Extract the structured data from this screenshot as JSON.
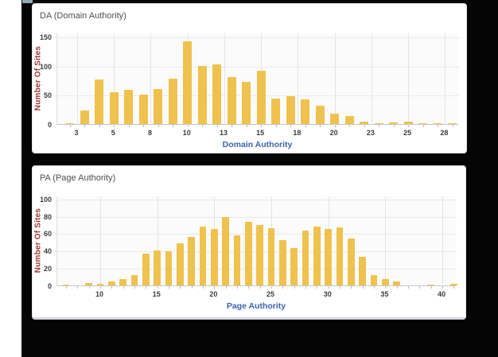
{
  "page": {
    "backdrop_color": "#050505",
    "chip_color": "#93a7b7",
    "card_background": "#ffffff"
  },
  "chart_data": [
    {
      "id": "da",
      "type": "bar",
      "title": "DA (Domain Authority)",
      "xlabel": "Domain Authority",
      "ylabel": "Number Of Sites",
      "x": [
        2,
        3,
        4,
        5,
        6,
        7,
        8,
        9,
        10,
        11,
        12,
        13,
        14,
        15,
        16,
        17,
        18,
        19,
        20,
        21,
        22,
        23,
        24,
        25,
        26,
        27,
        28
      ],
      "values": [
        1,
        23,
        76,
        55,
        59,
        51,
        60,
        78,
        142,
        100,
        102,
        80,
        72,
        92,
        44,
        48,
        42,
        32,
        18,
        13,
        4,
        1,
        3,
        4,
        1,
        1,
        2
      ],
      "xticks": [
        {
          "pos": 2.5,
          "label": "3"
        },
        {
          "pos": 5,
          "label": "5"
        },
        {
          "pos": 7.5,
          "label": "8"
        },
        {
          "pos": 10,
          "label": "10"
        },
        {
          "pos": 12.5,
          "label": "13"
        },
        {
          "pos": 15,
          "label": "15"
        },
        {
          "pos": 17.5,
          "label": "18"
        },
        {
          "pos": 20,
          "label": "20"
        },
        {
          "pos": 22.5,
          "label": "23"
        },
        {
          "pos": 25,
          "label": "25"
        },
        {
          "pos": 27.5,
          "label": "28"
        }
      ],
      "yticks": [
        0,
        50,
        100,
        150
      ],
      "ylim": [
        0,
        157
      ],
      "xlim": [
        1.15,
        28.45
      ],
      "grid": true,
      "bar_color": "#EFC24E",
      "xlabel_color": "#3A63B0",
      "ylabel_color": "#9B3732"
    },
    {
      "id": "pa",
      "type": "bar",
      "title": "PA (Page Authority)",
      "xlabel": "Page Authority",
      "ylabel": "Number Of Sites",
      "x": [
        7,
        8,
        9,
        10,
        11,
        12,
        13,
        14,
        15,
        16,
        17,
        18,
        19,
        20,
        21,
        22,
        23,
        24,
        25,
        26,
        27,
        28,
        29,
        30,
        31,
        32,
        33,
        34,
        35,
        36,
        37,
        38,
        39,
        40,
        41
      ],
      "values": [
        1,
        0,
        3,
        2,
        5,
        7,
        12,
        37,
        40,
        39,
        49,
        56,
        68,
        65,
        79,
        58,
        73,
        70,
        66,
        52,
        43,
        63,
        68,
        65,
        67,
        54,
        33,
        12,
        7,
        5,
        0,
        0,
        1,
        0,
        2
      ],
      "xticks": [
        {
          "pos": 10,
          "label": "10"
        },
        {
          "pos": 15,
          "label": "15"
        },
        {
          "pos": 20,
          "label": "20"
        },
        {
          "pos": 25,
          "label": "25"
        },
        {
          "pos": 30,
          "label": "30"
        },
        {
          "pos": 35,
          "label": "35"
        },
        {
          "pos": 40,
          "label": "40"
        }
      ],
      "yticks": [
        0,
        20,
        40,
        60,
        80,
        100
      ],
      "ylim": [
        0,
        103.5
      ],
      "xlim": [
        6.23,
        41.25
      ],
      "grid": true,
      "bar_color": "#EFC24E",
      "xlabel_color": "#3A63B0",
      "ylabel_color": "#9B3732"
    }
  ]
}
